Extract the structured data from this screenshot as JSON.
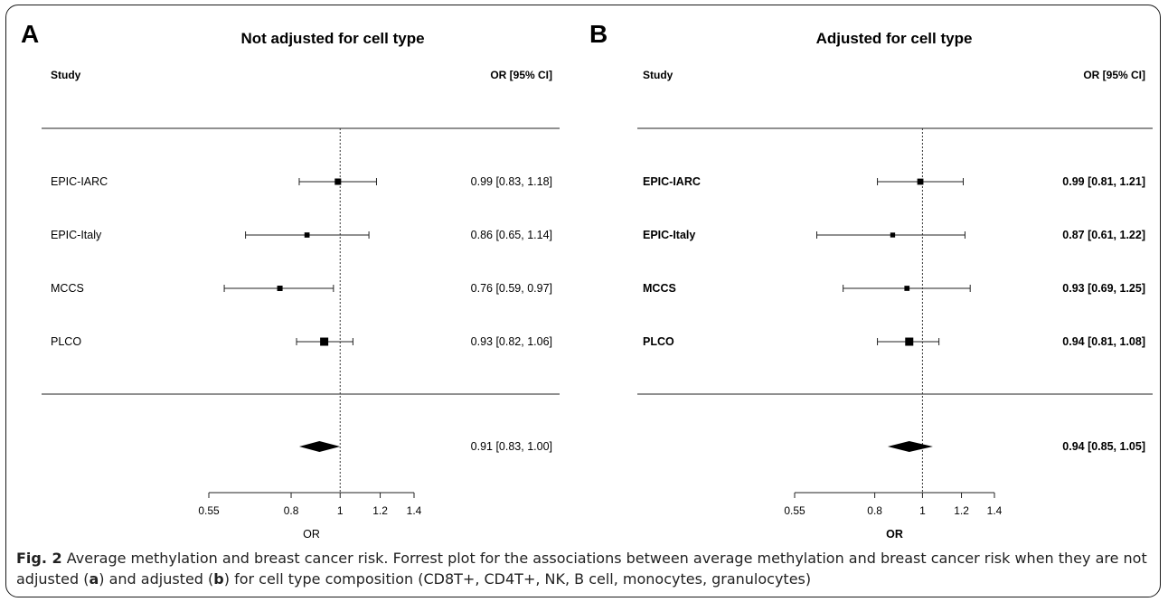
{
  "chart_data": [
    {
      "type": "forest",
      "panel": "A",
      "title": "Not adjusted for cell type",
      "header_left": "Study",
      "header_right": "OR [95% CI]",
      "bold_labels": false,
      "xlabel": "OR",
      "xscale": "log",
      "xlim": [
        0.55,
        1.4
      ],
      "ticks": [
        "0.55",
        "0.8",
        "1",
        "1.2",
        "1.4"
      ],
      "reference_line": 1,
      "studies": [
        {
          "name": "EPIC-IARC",
          "or": 0.99,
          "lo": 0.83,
          "hi": 1.18,
          "label": "0.99 [0.83, 1.18]",
          "weight": 0.45
        },
        {
          "name": "EPIC-Italy",
          "or": 0.86,
          "lo": 0.65,
          "hi": 1.14,
          "label": "0.86 [0.65, 1.14]",
          "weight": 0.2
        },
        {
          "name": "MCCS",
          "or": 0.76,
          "lo": 0.59,
          "hi": 0.97,
          "label": "0.76 [0.59, 0.97]",
          "weight": 0.25
        },
        {
          "name": "PLCO",
          "or": 0.93,
          "lo": 0.82,
          "hi": 1.06,
          "label": "0.93 [0.82, 1.06]",
          "weight": 1.0
        }
      ],
      "summary": {
        "or": 0.91,
        "lo": 0.83,
        "hi": 1.0,
        "label": "0.91 [0.83, 1.00]"
      }
    },
    {
      "type": "forest",
      "panel": "B",
      "title": "Adjusted for cell type",
      "header_left": "Study",
      "header_right": "OR [95% CI]",
      "bold_labels": true,
      "xlabel": "OR",
      "xscale": "log",
      "xlim": [
        0.55,
        1.4
      ],
      "ticks": [
        "0.55",
        "0.8",
        "1",
        "1.2",
        "1.4"
      ],
      "reference_line": 1,
      "studies": [
        {
          "name": "EPIC-IARC",
          "or": 0.99,
          "lo": 0.81,
          "hi": 1.21,
          "label": "0.99 [0.81, 1.21]",
          "weight": 0.4
        },
        {
          "name": "EPIC-Italy",
          "or": 0.87,
          "lo": 0.61,
          "hi": 1.22,
          "label": "0.87 [0.61, 1.22]",
          "weight": 0.15
        },
        {
          "name": "MCCS",
          "or": 0.93,
          "lo": 0.69,
          "hi": 1.25,
          "label": "0.93 [0.69, 1.25]",
          "weight": 0.2
        },
        {
          "name": "PLCO",
          "or": 0.94,
          "lo": 0.81,
          "hi": 1.08,
          "label": "0.94 [0.81, 1.08]",
          "weight": 1.0
        }
      ],
      "summary": {
        "or": 0.94,
        "lo": 0.85,
        "hi": 1.05,
        "label": "0.94 [0.85, 1.05]"
      }
    }
  ],
  "caption": {
    "fig_label": "Fig. 2",
    "text_1": " Average methylation and breast cancer risk. Forrest plot for the associations between average methylation and breast cancer risk when they are not adjusted (",
    "a": "a",
    "text_2": ") and adjusted (",
    "b": "b",
    "text_3": ") for cell type composition (CD8T+, CD4T+, NK, B cell, monocytes, granulocytes)"
  }
}
